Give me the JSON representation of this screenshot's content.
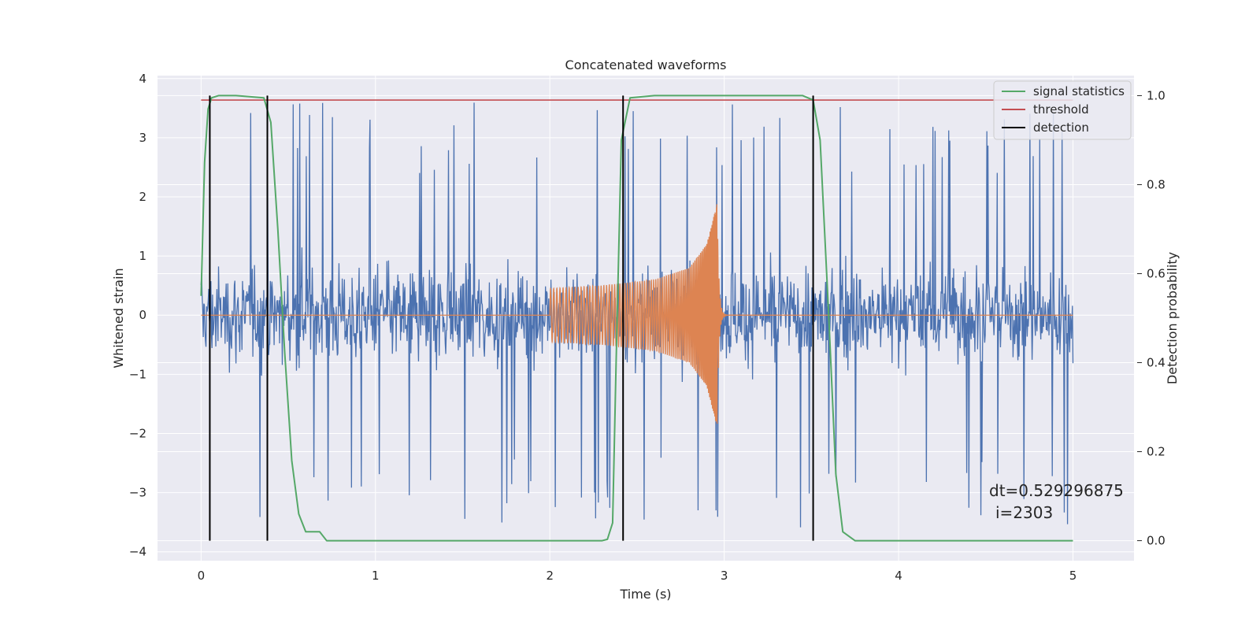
{
  "chart_data": {
    "type": "line",
    "title": "Concatenated waveforms",
    "xlabel": "Time (s)",
    "ylabel_left": "Whitened strain",
    "ylabel_right": "Detection probability",
    "xlim": [
      -0.25,
      5.35
    ],
    "ylim_left": [
      -4.15,
      4.05
    ],
    "ylim_right": [
      -0.045,
      1.045
    ],
    "grid": true,
    "background": "#eaeaf2",
    "legend_position": "top-right",
    "x_ticks": [
      "0",
      "1",
      "2",
      "3",
      "4",
      "5"
    ],
    "y_ticks_left": [
      "−4",
      "−3",
      "−2",
      "−1",
      "0",
      "1",
      "2",
      "3",
      "4"
    ],
    "y_ticks_right": [
      "0.0",
      "0.2",
      "0.4",
      "0.6",
      "0.8",
      "1.0"
    ],
    "series": [
      {
        "name": "",
        "axis": "left",
        "color": "#4c72b0",
        "kind": "noise",
        "x_range": [
          0,
          5
        ],
        "typical_abs": [
          0.6,
          1.2
        ],
        "peak_abs": [
          2.4,
          3.6
        ]
      },
      {
        "name": "",
        "axis": "left",
        "color": "#dd8452",
        "kind": "chirp",
        "x_start": 2.0,
        "x_end": 2.96,
        "amplitude_envelope": [
          [
            2.0,
            0.45
          ],
          [
            2.3,
            0.5
          ],
          [
            2.6,
            0.6
          ],
          [
            2.8,
            0.8
          ],
          [
            2.9,
            1.2
          ],
          [
            2.96,
            1.9
          ]
        ],
        "baseline": 0
      },
      {
        "name": "signal statistics",
        "axis": "right",
        "color": "#55a868",
        "x": [
          0,
          0.02,
          0.04,
          0.06,
          0.1,
          0.2,
          0.36,
          0.4,
          0.44,
          0.48,
          0.52,
          0.56,
          0.6,
          0.68,
          0.72,
          1.0,
          2.0,
          2.3,
          2.33,
          2.36,
          2.38,
          2.41,
          2.46,
          2.6,
          3.0,
          3.45,
          3.51,
          3.55,
          3.6,
          3.64,
          3.68,
          3.75,
          5.0
        ],
        "values": [
          0.55,
          0.85,
          0.97,
          0.995,
          1.0,
          1.0,
          0.995,
          0.94,
          0.7,
          0.42,
          0.18,
          0.06,
          0.02,
          0.02,
          0.0,
          0.0,
          0.0,
          0.0,
          0.003,
          0.04,
          0.4,
          0.9,
          0.995,
          1.0,
          1.0,
          1.0,
          0.99,
          0.9,
          0.5,
          0.15,
          0.02,
          0.0,
          0.0
        ]
      },
      {
        "name": "threshold",
        "axis": "right",
        "color": "#c44e52",
        "x": [
          0,
          5
        ],
        "values": [
          0.99,
          0.99
        ]
      },
      {
        "name": "detection",
        "axis": "right",
        "color": "#000000",
        "kind": "vlines",
        "x": [
          0.05,
          0.38,
          2.42,
          3.51
        ],
        "ymin": 0.0,
        "ymax": 1.0
      }
    ],
    "annotation": {
      "line1": "dt=0.529296875",
      "line2": "i=2303",
      "x": 4.5,
      "y_right": 0.11
    }
  }
}
